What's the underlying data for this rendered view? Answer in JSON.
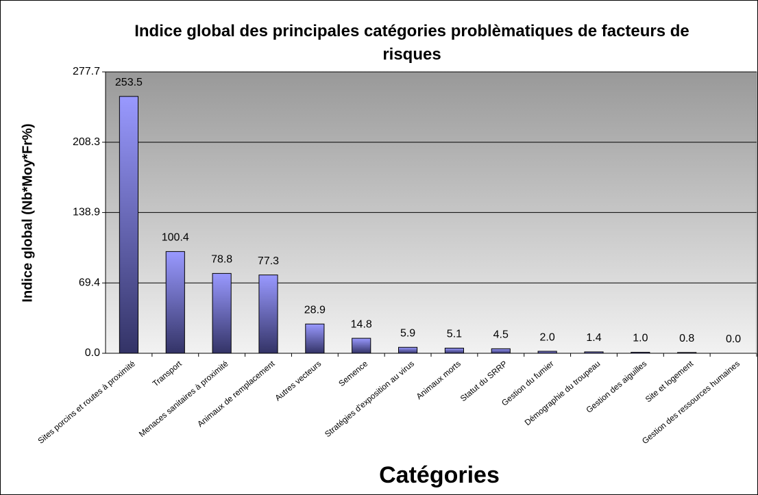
{
  "chart_data": {
    "type": "bar",
    "title": "Indice global des principales catégories problèmatiques de facteurs de risques",
    "x_label": "Catégories",
    "y_label": "Indice global (Nb*Moy*Fr%)",
    "categories": [
      "Sites porcins et routes à proximité",
      "Transport",
      "Menaces sanitaires à proximité",
      "Animaux de remplacement",
      "Autres vecteurs",
      "Semence",
      "Stratégies d'exposition au virus",
      "Animaux morts",
      "Statut du SRRP",
      "Gestion du fumier",
      "Démographie du troupeau",
      "Gestion des aiguilles",
      "Site et logement",
      "Gestion des ressources humaines"
    ],
    "values": [
      253.5,
      100.4,
      78.8,
      77.3,
      28.9,
      14.8,
      5.9,
      5.1,
      4.5,
      2.0,
      1.4,
      1.0,
      0.8,
      0.0
    ],
    "value_labels": [
      "253.5",
      "100.4",
      "78.8",
      "77.3",
      "28.9",
      "14.8",
      "5.9",
      "5.1",
      "4.5",
      "2.0",
      "1.4",
      "1.0",
      "0.8",
      "0.0"
    ],
    "color": "#9999ff",
    "ylim": [
      0,
      277.7
    ],
    "yticks": [
      {
        "value": 0,
        "label": "0.0"
      },
      69.4,
      138.9,
      208.3,
      277.7
    ],
    "grid": true
  }
}
